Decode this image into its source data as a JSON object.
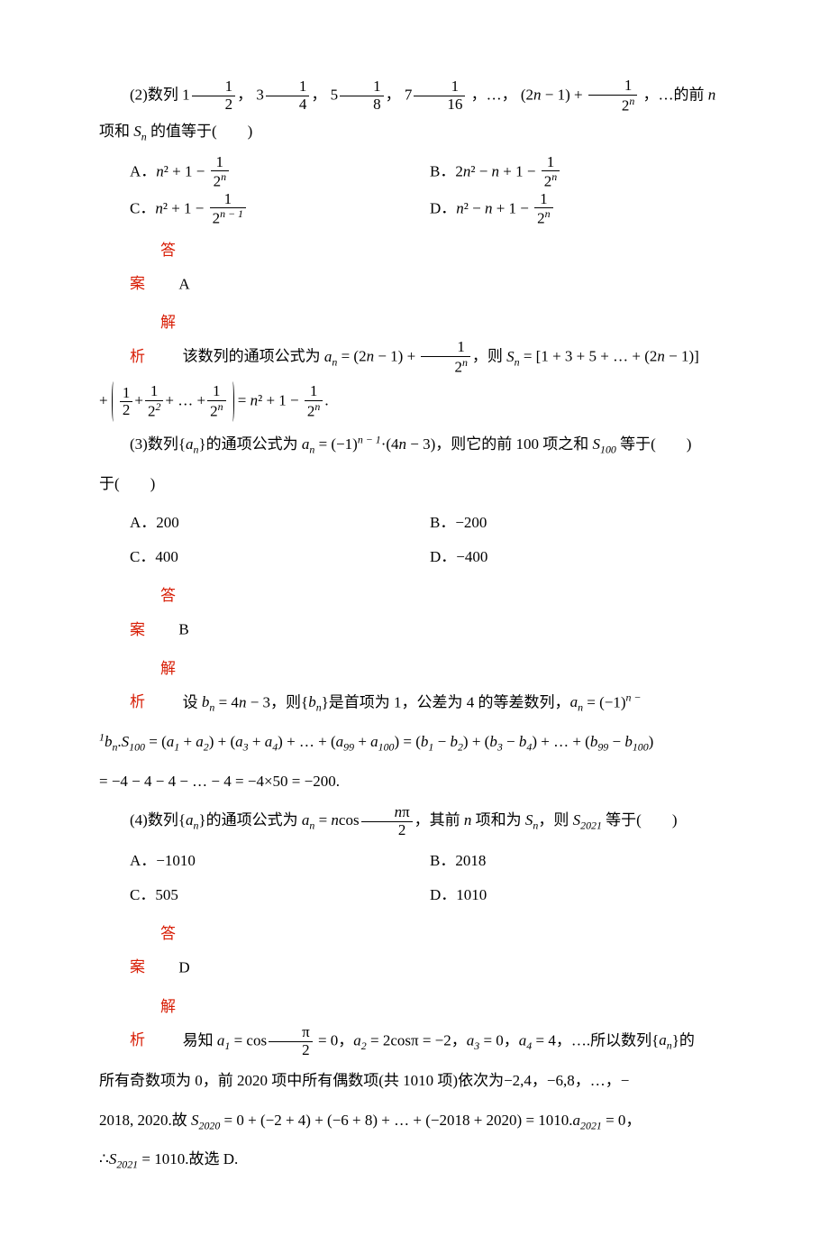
{
  "q2": {
    "stem_prefix": "(2)数列 ",
    "terms": [
      "1",
      "3",
      "5",
      "7"
    ],
    "term_dens": [
      "2",
      "4",
      "8",
      "16"
    ],
    "stem_mid": "，…，",
    "general_term_a": "(2",
    "general_term_b": " − 1) + ",
    "stem_suffix": "，…的前 ",
    "n": "n",
    "suffix2": " 项和 ",
    "Sn": "Sₙ",
    "suffix3": " 的值等于(　　)",
    "A": {
      "label": "A．",
      "expr_a": "n",
      "expr_b": "² + 1 − ",
      "den_base": "2",
      "den_exp": "n"
    },
    "B": {
      "label": "B．",
      "expr_a": "2",
      "expr_b": "n",
      "expr_c": "² − ",
      "expr_d": "n",
      "expr_e": " + 1 − ",
      "den_base": "2",
      "den_exp": "n"
    },
    "C": {
      "label": "C．",
      "expr_a": "n",
      "expr_b": "² + 1 − ",
      "den_base": "2",
      "den_exp": "n − 1"
    },
    "D": {
      "label": "D．",
      "expr_a": "n",
      "expr_b": "² − ",
      "expr_c": "n",
      "expr_d": " + 1 − ",
      "den_base": "2",
      "den_exp": "n"
    },
    "answer_label": "答案",
    "answer": "A",
    "analysis_label": "解析",
    "analysis_a": "该数列的通项公式为 ",
    "analysis_b": " = (2",
    "analysis_c": " − 1) + ",
    "analysis_d": "，则 ",
    "analysis_e": " = [1 + 3 + 5 + … + (2",
    "analysis_f": " − 1)]",
    "analysis_g": " + ",
    "analysis_h": " = ",
    "analysis_i": "² + 1 − ",
    "period": "."
  },
  "q3": {
    "stem_a": "(3)数列{",
    "stem_b": "}的通项公式为 ",
    "stem_c": " = (−1)",
    "exp": "n − 1",
    "stem_d": "·(4",
    "stem_e": " − 3)，则它的前 100 项之和 ",
    "S100": "S₁₀₀",
    "stem_f": " 等于(　　)",
    "A": {
      "label": "A．",
      "text": "200"
    },
    "B": {
      "label": "B．",
      "text": "−200"
    },
    "C": {
      "label": "C．",
      "text": "400"
    },
    "D": {
      "label": "D．",
      "text": "−400"
    },
    "answer_label": "答案",
    "answer": "B",
    "analysis_label": "解析",
    "line1_a": "设 ",
    "line1_b": " = 4",
    "line1_c": " − 3，则{",
    "line1_d": "}是首项为 1，公差为 4 的等差数列，",
    "line1_e": " = (−1)",
    "line2_a": ".",
    "line2_b": " = (",
    "line2_c": " + ",
    "line2_d": ") + (",
    "line2_e": " + ",
    "line2_f": ") + … + (",
    "line2_g": " + ",
    "line2_h": ") = (",
    "line2_i": " − ",
    "line2_j": ") + (",
    "line2_k": " − ",
    "line2_l": ") + … + (",
    "line2_m": " − ",
    "line2_n": ")",
    "line3": "= −4 − 4 − 4 − … − 4 = −4×50 = −200."
  },
  "q4": {
    "stem_a": "(4)数列{",
    "stem_b": "}的通项公式为 ",
    "stem_c": " = ",
    "stem_d": "cos",
    "frac_num_a": "n",
    "frac_num_b": "π",
    "frac_den": "2",
    "stem_e": "，其前 ",
    "stem_f": " 项和为 ",
    "stem_g": "，则 ",
    "S2021": "S₂₀₂₁",
    "stem_h": " 等于(　　)",
    "A": {
      "label": "A．",
      "text": "−1010"
    },
    "B": {
      "label": "B．",
      "text": "2018"
    },
    "C": {
      "label": "C．",
      "text": "505"
    },
    "D": {
      "label": "D．",
      "text": "1010"
    },
    "answer_label": "答案",
    "answer": "D",
    "analysis_label": "解析",
    "l1_a": "易知 ",
    "l1_b": " = cos",
    "l1_c": " = 0，",
    "l1_d": " = 2cosπ = −2，",
    "l1_e": " = 0，",
    "l1_f": " = 4，….所以数列{",
    "l1_g": "}的",
    "l2": "所有奇数项为 0，前 2020 项中所有偶数项(共 1010 项)依次为−2,4，−6,8，…，−",
    "l3_a": "2018, 2020.故 ",
    "l3_b": " = 0 + (−2 + 4) + (−6 + 8) + … + (−2018 + 2020) = 1010.",
    "l3_c": " = 0，",
    "l4_a": "∴",
    "l4_b": " = 1010.故选 D."
  },
  "an": "aₙ",
  "bn": "bₙ",
  "Sn_it": "Sₙ",
  "n_it": "n"
}
